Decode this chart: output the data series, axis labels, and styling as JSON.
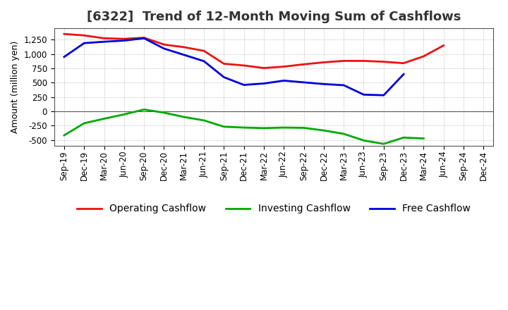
{
  "title": "[6322]  Trend of 12-Month Moving Sum of Cashflows",
  "ylabel": "Amount (million yen)",
  "x_labels": [
    "Sep-19",
    "Dec-19",
    "Mar-20",
    "Jun-20",
    "Sep-20",
    "Dec-20",
    "Mar-21",
    "Jun-21",
    "Sep-21",
    "Dec-21",
    "Mar-22",
    "Jun-22",
    "Sep-22",
    "Dec-22",
    "Mar-23",
    "Jun-23",
    "Sep-23",
    "Dec-23",
    "Mar-24",
    "Jun-24",
    "Sep-24",
    "Dec-24"
  ],
  "operating": [
    1350,
    1325,
    1275,
    1265,
    1285,
    1165,
    1120,
    1055,
    830,
    800,
    755,
    780,
    820,
    855,
    880,
    880,
    865,
    840,
    960,
    1150,
    null,
    null
  ],
  "investing": [
    -420,
    -210,
    -130,
    -55,
    30,
    -25,
    -100,
    -160,
    -270,
    -285,
    -295,
    -285,
    -290,
    -335,
    -395,
    -510,
    -570,
    -460,
    -475,
    null,
    null,
    null
  ],
  "free": [
    950,
    1190,
    1215,
    1235,
    1275,
    1095,
    985,
    875,
    595,
    460,
    485,
    535,
    505,
    475,
    455,
    290,
    280,
    648,
    null,
    null,
    null,
    null
  ],
  "operating_color": "#ee1111",
  "investing_color": "#00aa00",
  "free_color": "#0000dd",
  "ylim": [
    -600,
    1450
  ],
  "yticks": [
    -500,
    -250,
    0,
    250,
    500,
    750,
    1000,
    1250
  ],
  "bg_color": "#ffffff",
  "plot_bg_color": "#ffffff",
  "grid_color": "#aaaaaa",
  "linewidth": 2.0,
  "title_fontsize": 13,
  "legend_fontsize": 10,
  "axis_fontsize": 9,
  "tick_fontsize": 8.5
}
